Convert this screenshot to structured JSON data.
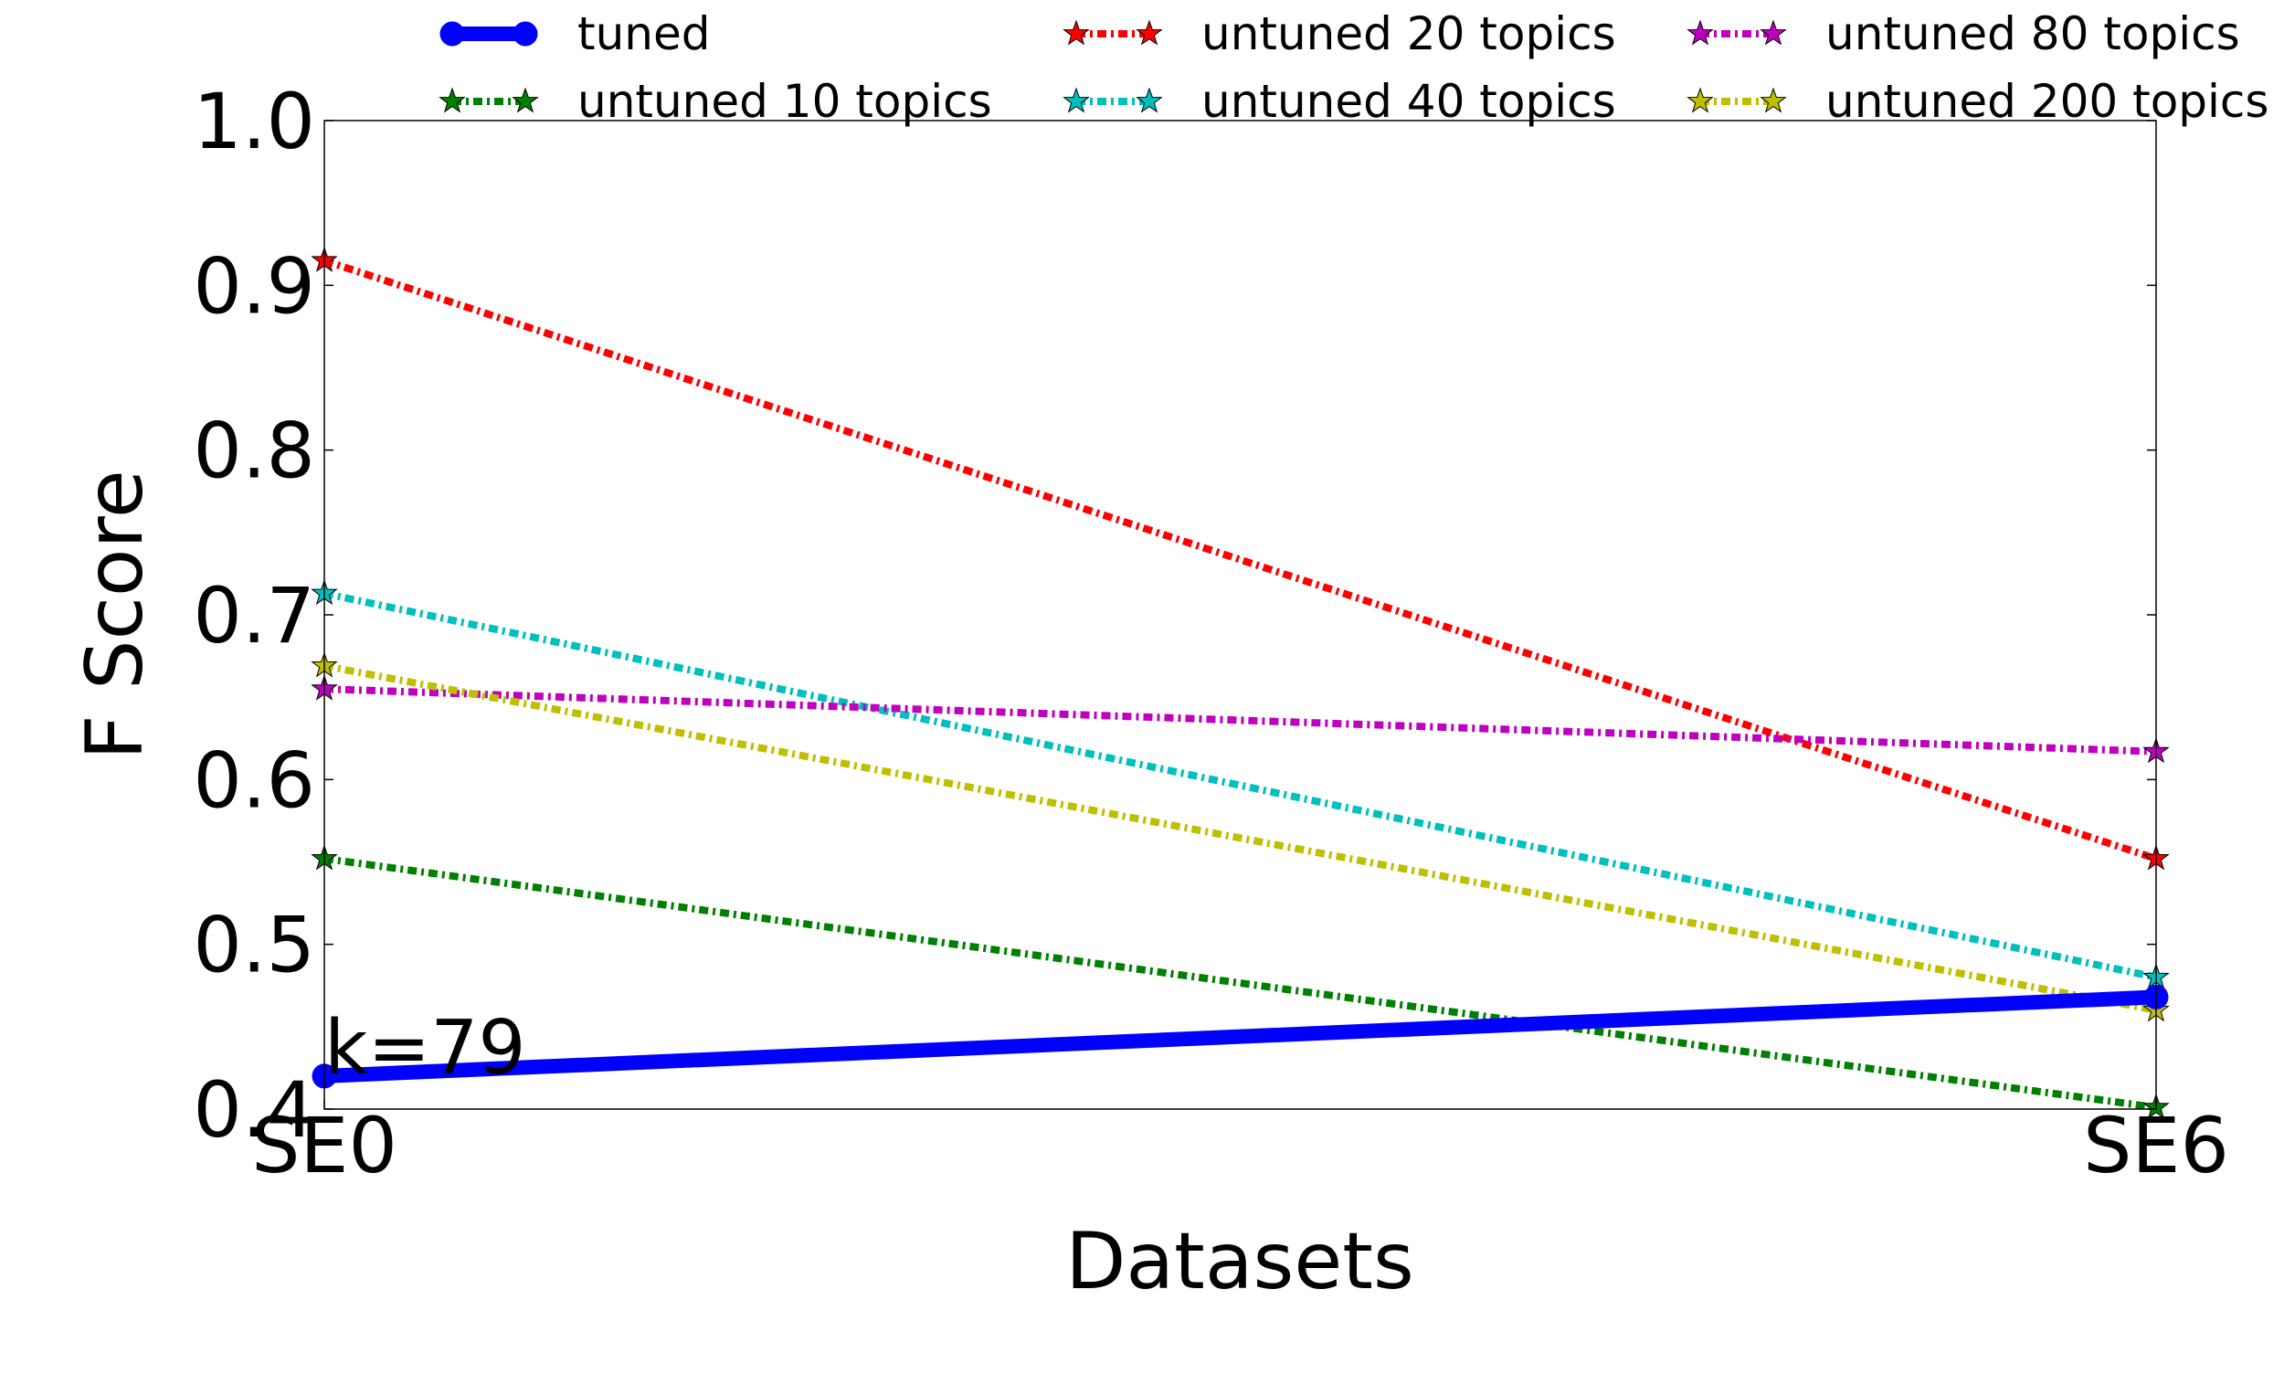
{
  "chart_data": {
    "type": "line",
    "title": "",
    "xlabel": "Datasets",
    "ylabel": "F Score",
    "categories": [
      "SE0",
      "SE6"
    ],
    "ylim": [
      0.4,
      1.0
    ],
    "yticks": [
      "0.4",
      "0.5",
      "0.6",
      "0.7",
      "0.8",
      "0.9",
      "1.0"
    ],
    "grid": false,
    "legend_position": "top",
    "annotation": "k=79",
    "series": [
      {
        "name": "tuned",
        "values": [
          0.42,
          0.468
        ],
        "color": "#0000ff",
        "marker": "circle",
        "linestyle": "solid"
      },
      {
        "name": "untuned 10 topics",
        "values": [
          0.552,
          0.401
        ],
        "color": "#008000",
        "marker": "star",
        "linestyle": "dashdot"
      },
      {
        "name": "untuned 20 topics",
        "values": [
          0.915,
          0.552
        ],
        "color": "#ff0000",
        "marker": "star",
        "linestyle": "dashdot"
      },
      {
        "name": "untuned 40 topics",
        "values": [
          0.713,
          0.48
        ],
        "color": "#00bfbf",
        "marker": "star",
        "linestyle": "dashdot"
      },
      {
        "name": "untuned 80 topics",
        "values": [
          0.655,
          0.617
        ],
        "color": "#bf00bf",
        "marker": "star",
        "linestyle": "dashdot"
      },
      {
        "name": "untuned 200 topics",
        "values": [
          0.669,
          0.46
        ],
        "color": "#bfbf00",
        "marker": "star",
        "linestyle": "dashdot"
      }
    ]
  }
}
